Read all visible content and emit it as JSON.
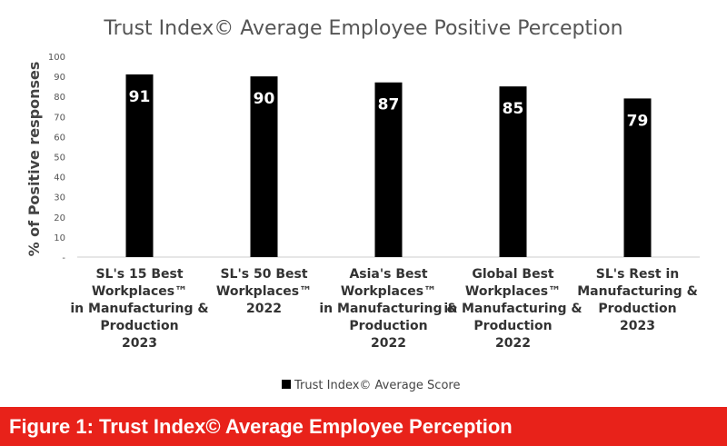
{
  "chart_data": {
    "type": "bar",
    "title": "Trust Index© Average Employee Positive Perception",
    "ylabel": "% of Positive responses",
    "xlabel": "",
    "ylim": [
      0,
      100
    ],
    "yticks": [
      "-",
      "10",
      "20",
      "30",
      "40",
      "50",
      "60",
      "70",
      "80",
      "90",
      "100"
    ],
    "categories": [
      [
        "SL's 15 Best",
        "Workplaces™",
        "in Manufacturing &",
        "Production",
        "2023"
      ],
      [
        "SL's 50 Best",
        "Workplaces™",
        "2022"
      ],
      [
        "Asia's Best",
        "Workplaces™",
        "in Manufacturing &",
        "Production",
        "2022"
      ],
      [
        "Global Best",
        "Workplaces™",
        "in Manufacturing &",
        "Production",
        "2022"
      ],
      [
        "SL's Rest in",
        "Manufacturing &",
        "Production",
        "2023"
      ]
    ],
    "series": [
      {
        "name": "Trust Index© Average Score",
        "values": [
          91,
          90,
          87,
          85,
          79
        ],
        "color": "#000000"
      }
    ],
    "grid": false,
    "legend": "bottom"
  },
  "caption": "Figure 1: Trust Index© Average Employee Perception"
}
